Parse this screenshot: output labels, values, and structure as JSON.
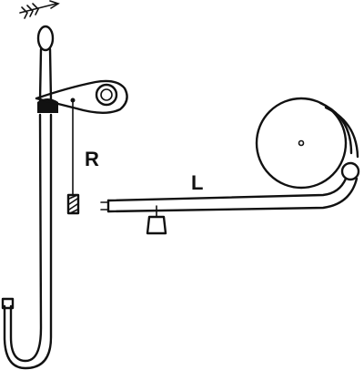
{
  "labels": {
    "r": "R",
    "l": "L"
  },
  "colors": {
    "ink": "#111111",
    "paper": "#ffffff"
  }
}
